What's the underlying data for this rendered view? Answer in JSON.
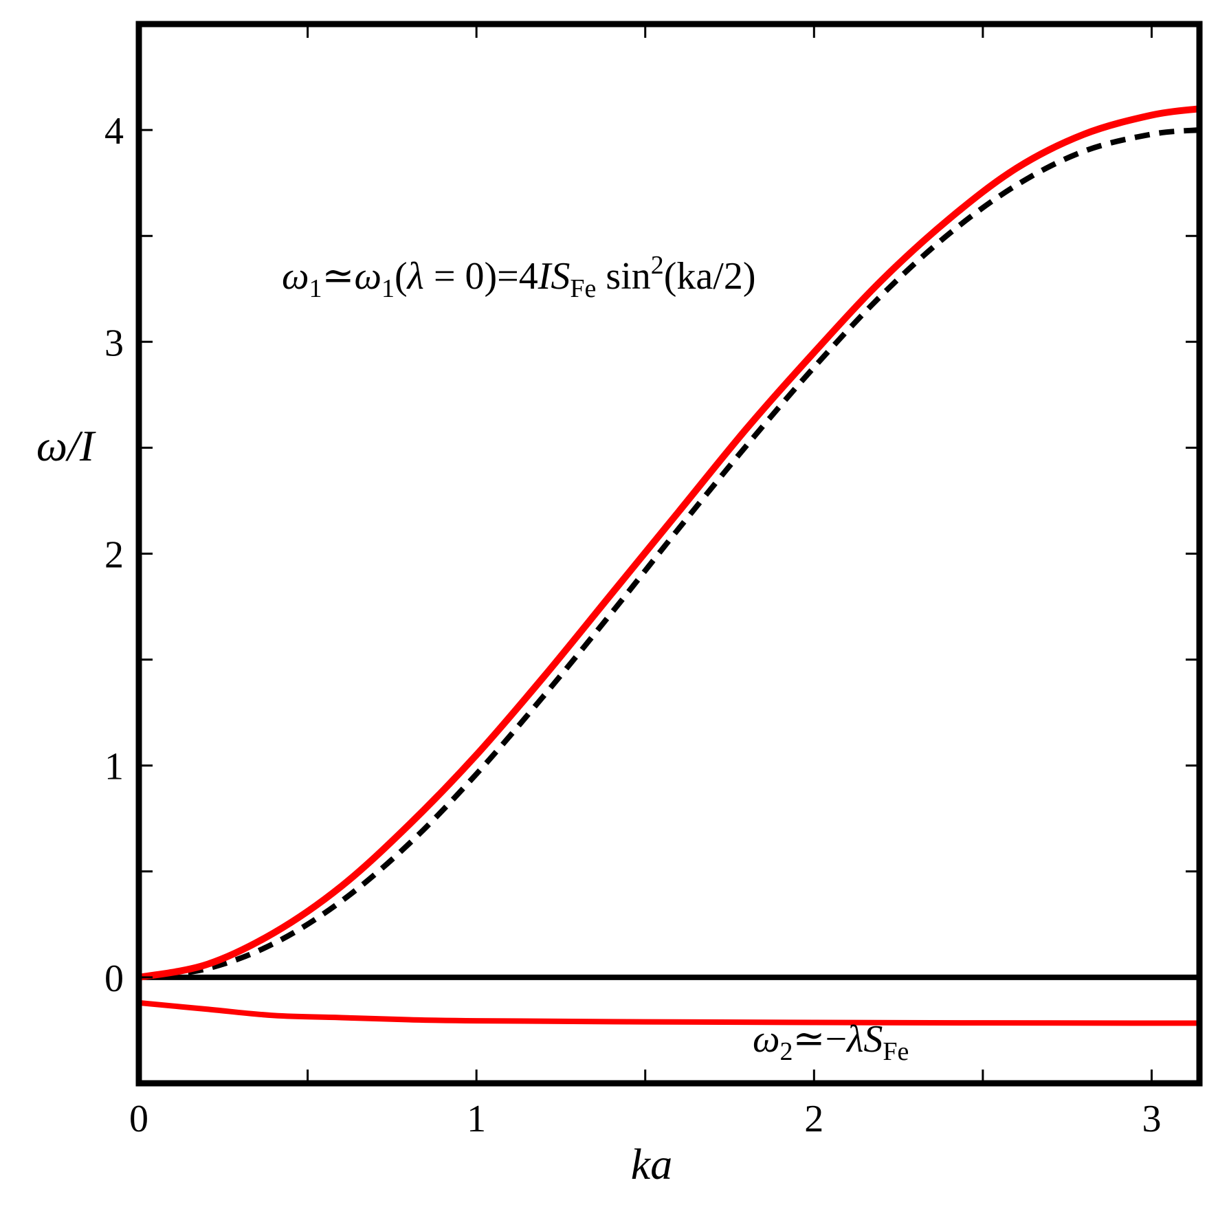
{
  "chart_data": {
    "type": "line",
    "xlabel": "ka",
    "ylabel": "ω/I",
    "xlim": [
      0,
      3.14159
    ],
    "ylim": [
      -0.5,
      4.5
    ],
    "x_ticks": [
      0,
      1,
      2,
      3
    ],
    "x_minor_ticks": [
      0.5,
      1.5,
      2.5
    ],
    "y_ticks": [
      0,
      1,
      2,
      3,
      4
    ],
    "y_minor_ticks": [
      0.5,
      1.5,
      2.5,
      3.5
    ],
    "grid": false,
    "colors": {
      "upper_red": "#ff0000",
      "lower_red": "#ff0000",
      "dashed": "#000000",
      "zero": "#000000"
    },
    "series": [
      {
        "style": "solid-red",
        "x": [
          0,
          0.2,
          0.4,
          0.6,
          0.8,
          1.0,
          1.2,
          1.4,
          1.6,
          1.8,
          2.0,
          2.2,
          2.4,
          2.6,
          2.8,
          3.0,
          3.14
        ],
        "y": [
          0.0,
          0.06,
          0.21,
          0.43,
          0.72,
          1.05,
          1.42,
          1.81,
          2.2,
          2.59,
          2.95,
          3.29,
          3.58,
          3.82,
          3.98,
          4.07,
          4.1
        ]
      },
      {
        "style": "dashed-black",
        "x": [
          0,
          0.2,
          0.4,
          0.6,
          0.8,
          1.0,
          1.2,
          1.4,
          1.6,
          1.8,
          2.0,
          2.2,
          2.4,
          2.6,
          2.8,
          3.0,
          3.14
        ],
        "y": [
          0.0,
          0.04,
          0.16,
          0.36,
          0.63,
          0.96,
          1.33,
          1.72,
          2.12,
          2.51,
          2.88,
          3.22,
          3.51,
          3.74,
          3.9,
          3.98,
          4.0
        ]
      },
      {
        "style": "solid-black",
        "x": [
          0,
          3.14
        ],
        "y": [
          0,
          0
        ]
      },
      {
        "style": "solid-red-lower",
        "x": [
          0,
          0.2,
          0.4,
          0.6,
          0.8,
          1.0,
          1.5,
          2.0,
          2.5,
          3.0,
          3.14
        ],
        "y": [
          -0.12,
          -0.15,
          -0.18,
          -0.19,
          -0.2,
          -0.205,
          -0.21,
          -0.213,
          -0.215,
          -0.216,
          -0.216
        ]
      }
    ],
    "annotations": [
      {
        "id": "omega1",
        "parts": {
          "w1a": "ω",
          "s1a": "1",
          "approx1": "≃",
          "w1b": "ω",
          "s1b": "1",
          "paren_open": "(",
          "lambda": "λ",
          "eq0": " = 0)=4",
          "I": "I",
          "S": "S",
          "sub_fe": "Fe",
          "sin": " sin",
          "sup2": "2",
          "tail": "(ka/2)"
        }
      },
      {
        "id": "omega2",
        "parts": {
          "w2": "ω",
          "s2": "2",
          "approx2": "≃−",
          "lambda": "λ",
          "S": "S",
          "sub_fe": "Fe"
        }
      }
    ]
  }
}
